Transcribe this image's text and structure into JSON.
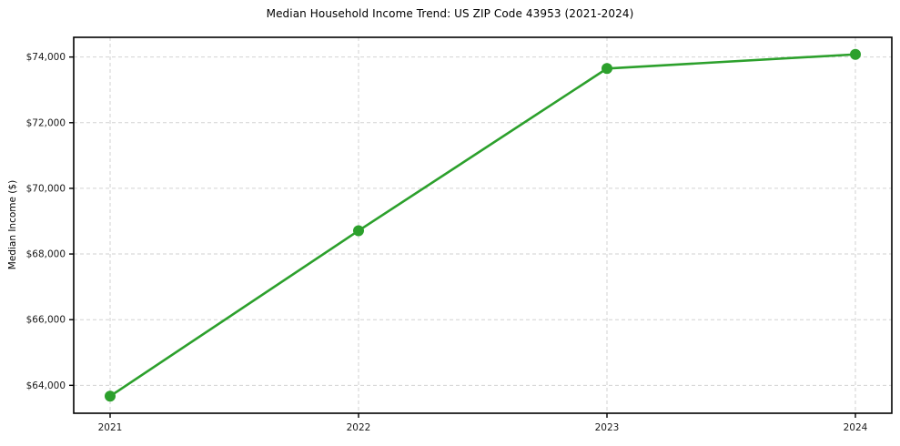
{
  "chart_data": {
    "type": "line",
    "title": "Median Household Income Trend: US ZIP Code 43953 (2021-2024)",
    "xlabel": "",
    "ylabel": "Median Income ($)",
    "categories": [
      "2021",
      "2022",
      "2023",
      "2024"
    ],
    "series": [
      {
        "name": "Median Household Income",
        "values": [
          63670,
          68710,
          73650,
          74080
        ]
      }
    ],
    "yticks": [
      64000,
      66000,
      68000,
      70000,
      72000,
      74000
    ],
    "ytick_labels": [
      "$64,000",
      "$66,000",
      "$68,000",
      "$70,000",
      "$72,000",
      "$74,000"
    ],
    "ylim": [
      63150,
      74600
    ],
    "grid": "on",
    "grid_style": "dashed",
    "legend": "none",
    "colors": {
      "line": "#2ca02c",
      "marker": "#2ca02c",
      "grid": "#d2d2d2",
      "spine": "#000000",
      "tick_text": "#191919",
      "background": "#ffffff"
    }
  }
}
